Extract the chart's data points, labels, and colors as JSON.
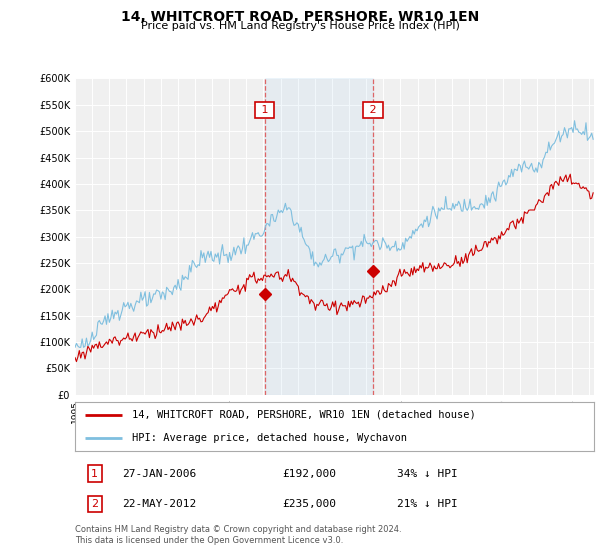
{
  "title": "14, WHITCROFT ROAD, PERSHORE, WR10 1EN",
  "subtitle": "Price paid vs. HM Land Registry's House Price Index (HPI)",
  "ylim": [
    0,
    600000
  ],
  "yticks": [
    0,
    50000,
    100000,
    150000,
    200000,
    250000,
    300000,
    350000,
    400000,
    450000,
    500000,
    550000,
    600000
  ],
  "xlim_start": 1995.0,
  "xlim_end": 2025.3,
  "hpi_color": "#7fbfdf",
  "price_color": "#cc0000",
  "sale1_x": 2006.07,
  "sale1_y": 192000,
  "sale2_x": 2012.38,
  "sale2_y": 235000,
  "legend_line1": "14, WHITCROFT ROAD, PERSHORE, WR10 1EN (detached house)",
  "legend_line2": "HPI: Average price, detached house, Wychavon",
  "annotation1_date": "27-JAN-2006",
  "annotation1_price": "£192,000",
  "annotation1_hpi": "34% ↓ HPI",
  "annotation2_date": "22-MAY-2012",
  "annotation2_price": "£235,000",
  "annotation2_hpi": "21% ↓ HPI",
  "footer": "Contains HM Land Registry data © Crown copyright and database right 2024.\nThis data is licensed under the Open Government Licence v3.0.",
  "background_color": "#ffffff",
  "plot_bg_color": "#f0f0f0"
}
